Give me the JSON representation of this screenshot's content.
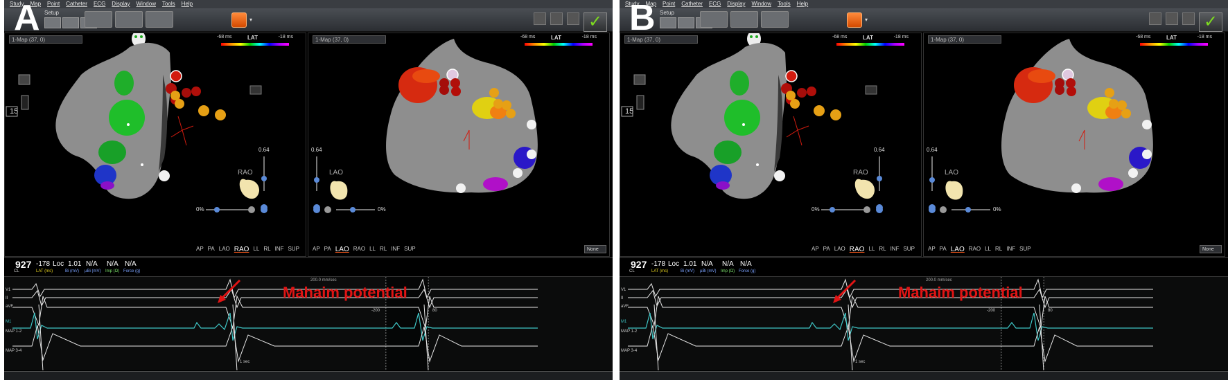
{
  "panels": [
    {
      "label": "A",
      "menu": [
        "Study",
        "Map",
        "Point",
        "Catheter",
        "ECG",
        "Display",
        "Window",
        "Tools",
        "Help"
      ],
      "setup_label": "Setup",
      "left_view": {
        "map_title": "1-Map (37, 0)",
        "lat_min": "-68 ms",
        "lat_label": "LAT",
        "lat_max": "-18 ms",
        "slider_value": "0.64",
        "orientation": "RAO",
        "zero": "0%",
        "depth": "15"
      },
      "right_view": {
        "map_title": "1-Map (37, 0)",
        "lat_min": "-68 ms",
        "lat_label": "LAT",
        "lat_max": "-18 ms",
        "slider_value": "0.64",
        "orientation": "LAO",
        "zero": "0%"
      },
      "left_views": [
        "AP",
        "PA",
        "LAO",
        "RAO",
        "LL",
        "RL",
        "INF",
        "SUP"
      ],
      "right_views": [
        "AP",
        "PA",
        "LAO",
        "RAO",
        "LL",
        "RL",
        "INF",
        "SUP"
      ],
      "none_label": "None",
      "readout": {
        "cl": "927",
        "cl_unit": "CL",
        "lat": "-178",
        "lat_unit": "LAT (ms)",
        "loc": "Loc",
        "bi": "1.01",
        "bi_unit": "Bi (mV)",
        "ubi": "N/A",
        "ubi_unit": "µBi (mV)",
        "imp": "N/A",
        "imp_unit": "Imp (Ω)",
        "force": "N/A",
        "force_unit": "Force (g)"
      },
      "ecg": {
        "speed": "200.0 mm/sec",
        "annotation": "Mahaim potential",
        "channels": [
          "V1",
          "II",
          "aVF",
          "M1",
          "MAP 1-2",
          "MAP 3-4"
        ],
        "marker_minus200": "-200",
        "marker_80": "80",
        "marker_sec": "1 sec"
      }
    },
    {
      "label": "B",
      "menu": [
        "Study",
        "Map",
        "Point",
        "Catheter",
        "ECG",
        "Display",
        "Window",
        "Tools",
        "Help"
      ],
      "setup_label": "Setup",
      "left_view": {
        "map_title": "1-Map (37, 0)",
        "lat_min": "-68 ms",
        "lat_label": "LAT",
        "lat_max": "-18 ms",
        "slider_value": "0.64",
        "orientation": "RAO",
        "zero": "0%",
        "depth": "15"
      },
      "right_view": {
        "map_title": "1-Map (37, 0)",
        "lat_min": "-68 ms",
        "lat_label": "LAT",
        "lat_max": "-18 ms",
        "slider_value": "0.64",
        "orientation": "LAO",
        "zero": "0%"
      },
      "left_views": [
        "AP",
        "PA",
        "LAO",
        "RAO",
        "LL",
        "RL",
        "INF",
        "SUP"
      ],
      "right_views": [
        "AP",
        "PA",
        "LAO",
        "RAO",
        "LL",
        "RL",
        "INF",
        "SUP"
      ],
      "none_label": "None",
      "readout": {
        "cl": "927",
        "cl_unit": "CL",
        "lat": "-178",
        "lat_unit": "LAT (ms)",
        "loc": "Loc",
        "bi": "1.01",
        "bi_unit": "Bi (mV)",
        "ubi": "N/A",
        "ubi_unit": "µBi (mV)",
        "imp": "N/A",
        "imp_unit": "Imp (Ω)",
        "force": "N/A",
        "force_unit": "Force (g)"
      },
      "ecg": {
        "speed": "200.0 mm/sec",
        "annotation": "Mahaim potential",
        "channels": [
          "V1",
          "II",
          "aVF",
          "M1",
          "MAP 1-2",
          "MAP 3-4"
        ],
        "marker_minus200": "-200",
        "marker_80": "80",
        "marker_sec": "1 sec"
      }
    }
  ],
  "colors": {
    "annotation": "#e01414",
    "check": "#7ddc1f",
    "ecg_trace": "#e8e8e8",
    "map_trace": "#3fc7c7",
    "activation_red": "#d21b0f",
    "activation_green": "#1fae2a",
    "activation_blue": "#1f35c8"
  }
}
